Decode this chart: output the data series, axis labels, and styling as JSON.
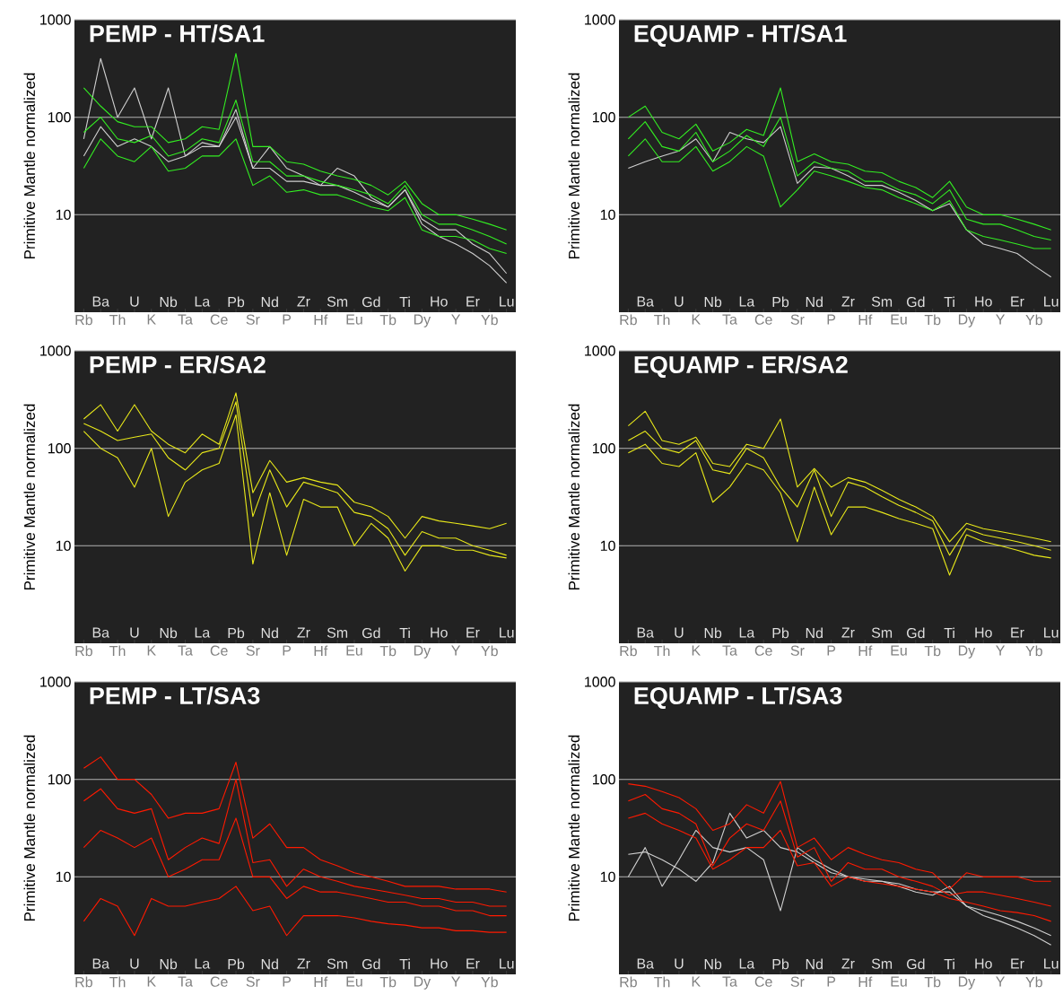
{
  "chart_data": [
    {
      "type": "line",
      "title": "PEMP - HT/SA1",
      "ylabel": "Primitive Mantle normalized",
      "log": "y",
      "ylim": [
        1,
        1000
      ],
      "yticks": [
        10,
        100,
        1000
      ],
      "grid": "y",
      "categories": [
        "Rb",
        "Ba",
        "Th",
        "U",
        "K",
        "Nb",
        "Ta",
        "La",
        "Ce",
        "Pb",
        "Sr",
        "Nd",
        "P",
        "Zr",
        "Hf",
        "Sm",
        "Eu",
        "Gd",
        "Tb",
        "Ti",
        "Dy",
        "Ho",
        "Y",
        "Er",
        "Yb",
        "Lu"
      ],
      "series": [
        {
          "color": "#d0d0d0",
          "values": [
            60,
            400,
            100,
            200,
            60,
            200,
            40,
            50,
            50,
            100,
            30,
            50,
            30,
            25,
            20,
            30,
            25,
            15,
            12,
            18,
            8,
            6,
            5,
            4,
            3,
            2
          ]
        },
        {
          "color": "#d0d0d0",
          "values": [
            40,
            80,
            50,
            60,
            50,
            35,
            40,
            55,
            50,
            120,
            30,
            30,
            22,
            22,
            20,
            20,
            17,
            14,
            12,
            18,
            9,
            7,
            7,
            5,
            4,
            2.5
          ]
        },
        {
          "color": "#33ee22",
          "values": [
            200,
            130,
            90,
            80,
            80,
            55,
            60,
            80,
            75,
            450,
            50,
            50,
            35,
            33,
            28,
            25,
            23,
            20,
            16,
            22,
            13,
            10,
            10,
            9,
            8,
            7
          ]
        },
        {
          "color": "#33ee22",
          "values": [
            70,
            100,
            60,
            55,
            65,
            40,
            45,
            60,
            55,
            150,
            35,
            35,
            25,
            25,
            22,
            20,
            18,
            16,
            13,
            20,
            10,
            8,
            8,
            7,
            6,
            5
          ]
        },
        {
          "color": "#33ee22",
          "values": [
            30,
            60,
            40,
            35,
            50,
            28,
            30,
            40,
            40,
            60,
            20,
            25,
            17,
            18,
            16,
            16,
            14,
            12,
            11,
            15,
            7,
            6,
            6,
            5.5,
            4.5,
            4
          ]
        }
      ]
    },
    {
      "type": "line",
      "title": "EQUAMP - HT/SA1",
      "ylabel": "Primitive Mantle normalized",
      "log": "y",
      "ylim": [
        1,
        1000
      ],
      "yticks": [
        10,
        100,
        1000
      ],
      "grid": "y",
      "categories": [
        "Rb",
        "Ba",
        "Th",
        "U",
        "K",
        "Nb",
        "Ta",
        "La",
        "Ce",
        "Pb",
        "Sr",
        "Nd",
        "P",
        "Zr",
        "Hf",
        "Sm",
        "Eu",
        "Gd",
        "Tb",
        "Ti",
        "Dy",
        "Ho",
        "Y",
        "Er",
        "Yb",
        "Lu"
      ],
      "series": [
        {
          "color": "#d0d0d0",
          "values": [
            30,
            35,
            40,
            45,
            60,
            35,
            70,
            60,
            55,
            80,
            21,
            31,
            30,
            25,
            20,
            20,
            17,
            14,
            11,
            13,
            7,
            5,
            4.5,
            4,
            3,
            2.3
          ]
        },
        {
          "color": "#33ee22",
          "values": [
            100,
            130,
            70,
            60,
            85,
            45,
            55,
            75,
            65,
            200,
            35,
            42,
            35,
            33,
            28,
            27,
            22,
            19,
            15,
            22,
            12,
            10,
            10,
            9,
            8,
            7
          ]
        },
        {
          "color": "#33ee22",
          "values": [
            60,
            90,
            50,
            45,
            70,
            35,
            45,
            65,
            50,
            100,
            25,
            35,
            30,
            28,
            22,
            22,
            18,
            16,
            13,
            18,
            9,
            8,
            8,
            7,
            6,
            5.5
          ]
        },
        {
          "color": "#33ee22",
          "values": [
            40,
            60,
            35,
            35,
            50,
            28,
            35,
            50,
            40,
            12,
            18,
            28,
            25,
            22,
            19,
            18,
            15,
            13,
            11,
            14,
            7,
            6,
            5.5,
            5,
            4.5,
            4.5
          ]
        }
      ]
    },
    {
      "type": "line",
      "title": "PEMP - ER/SA2",
      "ylabel": "Primitive Mantle normalized",
      "log": "y",
      "ylim": [
        1,
        1000
      ],
      "yticks": [
        10,
        100,
        1000
      ],
      "grid": "y",
      "categories": [
        "Rb",
        "Ba",
        "Th",
        "U",
        "K",
        "Nb",
        "Ta",
        "La",
        "Ce",
        "Pb",
        "Sr",
        "Nd",
        "P",
        "Zr",
        "Hf",
        "Sm",
        "Eu",
        "Gd",
        "Tb",
        "Ti",
        "Dy",
        "Ho",
        "Y",
        "Er",
        "Yb",
        "Lu"
      ],
      "series": [
        {
          "color": "#e8e81a",
          "values": [
            200,
            280,
            150,
            280,
            150,
            110,
            90,
            140,
            110,
            370,
            35,
            75,
            45,
            50,
            45,
            42,
            28,
            25,
            20,
            12,
            20,
            18,
            17,
            16,
            15,
            17
          ]
        },
        {
          "color": "#e8e81a",
          "values": [
            180,
            150,
            120,
            130,
            140,
            80,
            60,
            90,
            100,
            300,
            20,
            60,
            25,
            45,
            40,
            35,
            22,
            20,
            15,
            8,
            14,
            12,
            12,
            10,
            9,
            8
          ]
        },
        {
          "color": "#e8e81a",
          "values": [
            150,
            100,
            80,
            40,
            100,
            20,
            45,
            60,
            70,
            220,
            6.5,
            35,
            8,
            30,
            25,
            25,
            10,
            17,
            12,
            5.5,
            10,
            10,
            9,
            9,
            8,
            7.5
          ]
        }
      ]
    },
    {
      "type": "line",
      "title": "EQUAMP - ER/SA2",
      "ylabel": "Primitive Mantle normalized",
      "log": "y",
      "ylim": [
        1,
        1000
      ],
      "yticks": [
        10,
        100,
        1000
      ],
      "grid": "y",
      "categories": [
        "Rb",
        "Ba",
        "Th",
        "U",
        "K",
        "Nb",
        "Ta",
        "La",
        "Ce",
        "Pb",
        "Sr",
        "Nd",
        "P",
        "Zr",
        "Hf",
        "Sm",
        "Eu",
        "Gd",
        "Tb",
        "Ti",
        "Dy",
        "Ho",
        "Y",
        "Er",
        "Yb",
        "Lu"
      ],
      "series": [
        {
          "color": "#e8e81a",
          "values": [
            170,
            240,
            120,
            110,
            130,
            70,
            65,
            110,
            100,
            200,
            40,
            62,
            40,
            50,
            45,
            37,
            30,
            25,
            20,
            11,
            17,
            15,
            14,
            13,
            12,
            11
          ]
        },
        {
          "color": "#e8e81a",
          "values": [
            120,
            150,
            100,
            90,
            120,
            60,
            55,
            100,
            80,
            40,
            25,
            60,
            20,
            45,
            40,
            32,
            26,
            22,
            18,
            8,
            15,
            13,
            12,
            11,
            10,
            9
          ]
        },
        {
          "color": "#e8e81a",
          "values": [
            90,
            110,
            70,
            65,
            90,
            28,
            40,
            70,
            60,
            35,
            11,
            40,
            13,
            25,
            25,
            22,
            19,
            17,
            15,
            5,
            13,
            11,
            10,
            9,
            8,
            7.5
          ]
        }
      ]
    },
    {
      "type": "line",
      "title": "PEMP - LT/SA3",
      "ylabel": "Primitive Mantle normalized",
      "log": "y",
      "ylim": [
        1,
        1000
      ],
      "yticks": [
        10,
        100,
        1000
      ],
      "grid": "y",
      "categories": [
        "Rb",
        "Ba",
        "Th",
        "U",
        "K",
        "Nb",
        "Ta",
        "La",
        "Ce",
        "Pb",
        "Sr",
        "Nd",
        "P",
        "Zr",
        "Hf",
        "Sm",
        "Eu",
        "Gd",
        "Tb",
        "Ti",
        "Dy",
        "Ho",
        "Y",
        "Er",
        "Yb",
        "Lu"
      ],
      "series": [
        {
          "color": "#ff1a00",
          "values": [
            130,
            170,
            100,
            100,
            70,
            40,
            45,
            45,
            50,
            150,
            25,
            35,
            20,
            20,
            15,
            13,
            11,
            10,
            9,
            8,
            8,
            8,
            7.5,
            7.5,
            7.5,
            7
          ]
        },
        {
          "color": "#ff1a00",
          "values": [
            60,
            80,
            50,
            45,
            50,
            15,
            20,
            25,
            22,
            100,
            14,
            15,
            8,
            12,
            10,
            9,
            8,
            7.5,
            7,
            6.5,
            6,
            6,
            5.5,
            5.5,
            5,
            5
          ]
        },
        {
          "color": "#ff1a00",
          "values": [
            20,
            30,
            25,
            20,
            25,
            10,
            12,
            15,
            15,
            40,
            10,
            10,
            6,
            8,
            7,
            7,
            6.5,
            6,
            5.5,
            5.5,
            5,
            5,
            4.5,
            4.5,
            4,
            4
          ]
        },
        {
          "color": "#ff1a00",
          "values": [
            3.5,
            6,
            5,
            2.5,
            6,
            5,
            5,
            5.5,
            6,
            8,
            4.5,
            5,
            2.5,
            4,
            4,
            4,
            3.8,
            3.5,
            3.3,
            3.2,
            3,
            3,
            2.8,
            2.8,
            2.7,
            2.7
          ]
        }
      ]
    },
    {
      "type": "line",
      "title": "EQUAMP - LT/SA3",
      "ylabel": "Primitive Mantle normalized",
      "log": "y",
      "ylim": [
        1,
        1000
      ],
      "yticks": [
        10,
        100,
        1000
      ],
      "grid": "y",
      "categories": [
        "Rb",
        "Ba",
        "Th",
        "U",
        "K",
        "Nb",
        "Ta",
        "La",
        "Ce",
        "Pb",
        "Sr",
        "Nd",
        "P",
        "Zr",
        "Hf",
        "Sm",
        "Eu",
        "Gd",
        "Tb",
        "Ti",
        "Dy",
        "Ho",
        "Y",
        "Er",
        "Yb",
        "Lu"
      ],
      "series": [
        {
          "color": "#d0d0d0",
          "values": [
            10,
            20,
            8,
            15,
            30,
            20,
            18,
            20,
            15,
            4.5,
            20,
            15,
            12,
            10,
            9,
            9,
            8,
            7,
            6.5,
            8,
            5,
            4,
            3.5,
            3,
            2.5,
            2
          ]
        },
        {
          "color": "#d0d0d0",
          "values": [
            17,
            18,
            15,
            12,
            9,
            14,
            45,
            25,
            30,
            20,
            18,
            14,
            11,
            10,
            9.5,
            9,
            8.5,
            7.5,
            7,
            7,
            5,
            4.5,
            4,
            3.5,
            3,
            2.5
          ]
        },
        {
          "color": "#ff1a00",
          "values": [
            90,
            85,
            75,
            65,
            50,
            30,
            35,
            55,
            45,
            95,
            20,
            25,
            15,
            20,
            17,
            15,
            14,
            12,
            11,
            7.5,
            11,
            10,
            10,
            10,
            9,
            9
          ]
        },
        {
          "color": "#ff1a00",
          "values": [
            60,
            70,
            50,
            45,
            35,
            13,
            25,
            35,
            30,
            60,
            16,
            20,
            9,
            14,
            12,
            12,
            10,
            9,
            8,
            6.5,
            7,
            7,
            6.5,
            6,
            5.5,
            5
          ]
        },
        {
          "color": "#ff1a00",
          "values": [
            40,
            45,
            35,
            30,
            25,
            12,
            15,
            20,
            20,
            30,
            13,
            14,
            8,
            10,
            9,
            8.5,
            8,
            7.5,
            7,
            6,
            5.5,
            5,
            4.5,
            4.3,
            4,
            3.5
          ]
        }
      ]
    }
  ]
}
